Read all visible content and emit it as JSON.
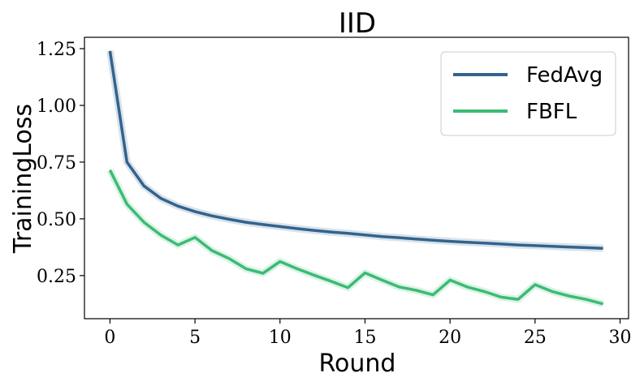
{
  "chart_data": {
    "type": "line",
    "title": "IID",
    "xlabel": "Round",
    "ylabel": "TrainingLoss",
    "xlim": [
      -1.5,
      30.5
    ],
    "ylim": [
      0.06,
      1.3
    ],
    "xticks": [
      0,
      5,
      10,
      15,
      20,
      25,
      30
    ],
    "yticks": [
      0.25,
      0.5,
      0.75,
      1.0,
      1.25
    ],
    "xtick_labels": [
      "0",
      "5",
      "10",
      "15",
      "20",
      "25",
      "30"
    ],
    "ytick_labels": [
      "0.25",
      "0.50",
      "0.75",
      "1.00",
      "1.25"
    ],
    "grid": false,
    "legend_position": "top-right",
    "x": [
      0,
      1,
      2,
      3,
      4,
      5,
      6,
      7,
      8,
      9,
      10,
      11,
      12,
      13,
      14,
      15,
      16,
      17,
      18,
      19,
      20,
      21,
      22,
      23,
      24,
      25,
      26,
      27,
      28,
      29
    ],
    "series": [
      {
        "name": "FedAvg",
        "color": "#33638d",
        "values": [
          1.24,
          0.75,
          0.645,
          0.59,
          0.556,
          0.532,
          0.513,
          0.498,
          0.485,
          0.475,
          0.466,
          0.457,
          0.449,
          0.442,
          0.436,
          0.429,
          0.422,
          0.417,
          0.411,
          0.406,
          0.401,
          0.397,
          0.393,
          0.389,
          0.385,
          0.382,
          0.379,
          0.376,
          0.373,
          0.37
        ]
      },
      {
        "name": "FBFL",
        "color": "#3cbb75",
        "values": [
          0.715,
          0.565,
          0.485,
          0.428,
          0.385,
          0.418,
          0.36,
          0.325,
          0.28,
          0.26,
          0.312,
          0.28,
          0.252,
          0.225,
          0.197,
          0.262,
          0.23,
          0.2,
          0.185,
          0.165,
          0.23,
          0.2,
          0.18,
          0.155,
          0.145,
          0.21,
          0.18,
          0.16,
          0.145,
          0.125
        ]
      }
    ]
  }
}
